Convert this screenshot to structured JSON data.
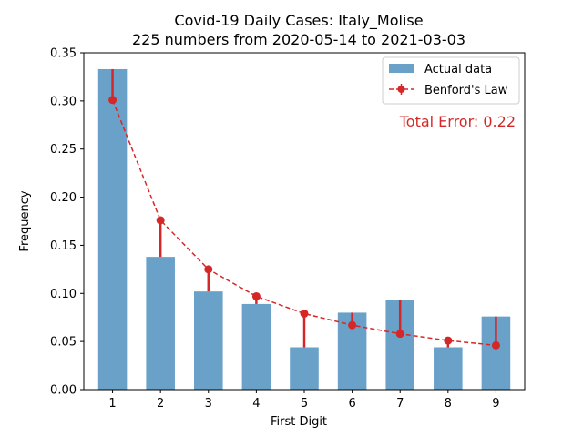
{
  "chart_data": {
    "type": "bar",
    "title": "Covid-19 Daily Cases: Italy_Molise",
    "subtitle": "225 numbers from 2020-05-14 to 2021-03-03",
    "xlabel": "First Digit",
    "ylabel": "Frequency",
    "categories": [
      "1",
      "2",
      "3",
      "4",
      "5",
      "6",
      "7",
      "8",
      "9"
    ],
    "ylim": [
      0,
      0.35
    ],
    "yticks": [
      "0.00",
      "0.05",
      "0.10",
      "0.15",
      "0.20",
      "0.25",
      "0.30",
      "0.35"
    ],
    "grid": false,
    "legend_position": "top-right",
    "series": [
      {
        "name": "Actual data",
        "type": "bar",
        "color": "#6aa1c8",
        "values": [
          0.333,
          0.138,
          0.102,
          0.089,
          0.044,
          0.08,
          0.093,
          0.044,
          0.076
        ]
      },
      {
        "name": "Benford's Law",
        "type": "line",
        "style": "dashed-with-markers",
        "color": "#d62728",
        "values": [
          0.301,
          0.176,
          0.125,
          0.097,
          0.079,
          0.067,
          0.058,
          0.051,
          0.046
        ]
      }
    ],
    "annotation": {
      "text": "Total Error: 0.22",
      "color": "#d62728",
      "position": "top-right"
    }
  }
}
